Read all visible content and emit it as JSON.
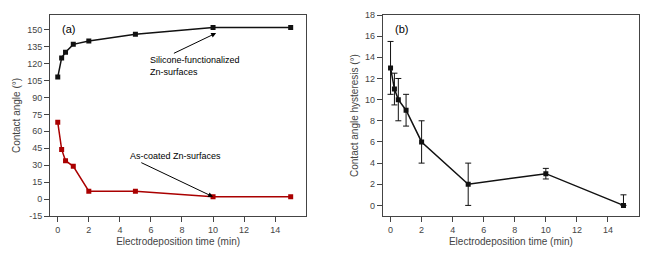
{
  "chart_data": [
    {
      "type": "line",
      "xlabel": "Electrodeposition time (min)",
      "ylabel": "Contact angle (°)",
      "x": [
        0,
        0.25,
        0.5,
        1,
        2,
        5,
        10,
        15
      ],
      "series": [
        {
          "name": "Silicone-functionalized Zn-surfaces",
          "color": "#111111",
          "marker": "square",
          "line_style": "solid",
          "values": [
            108,
            125,
            130,
            137,
            140,
            146,
            152,
            152
          ]
        },
        {
          "name": "As-coated Zn-surfaces",
          "color": "#aa0000",
          "marker": "square",
          "line_style": "solid",
          "values": [
            68,
            44,
            34,
            29,
            7,
            7,
            2,
            2
          ]
        }
      ],
      "xlim": [
        -0.5,
        16
      ],
      "ylim": [
        -15,
        163
      ],
      "xticks": [
        0,
        2,
        4,
        6,
        8,
        10,
        12,
        14
      ],
      "yticks": [
        -15,
        0,
        15,
        30,
        45,
        60,
        75,
        90,
        105,
        120,
        135,
        150
      ],
      "grid": false,
      "legend": false,
      "annotations": [
        {
          "text": "Silicone-functionalized\nZn-surfaces",
          "x": 10.2,
          "y": 147,
          "text_x": 5.8,
          "text_y": 118
        },
        {
          "text": "As-coated Zn-surfaces",
          "x": 10,
          "y": 2,
          "text_x": 4.5,
          "text_y": 38
        },
        {
          "text": "(a)"
        }
      ]
    },
    {
      "type": "line",
      "xlabel": "Electrodeposition time (min)",
      "ylabel": "Contact angle hysteresis (°)",
      "x": [
        0,
        0.25,
        0.5,
        1,
        2,
        5,
        10,
        15
      ],
      "series": [
        {
          "name": "Contact angle hysteresis",
          "color": "#111111",
          "marker": "square",
          "line_style": "solid",
          "values": [
            13,
            11,
            10,
            9,
            6,
            2,
            3,
            0
          ],
          "error_minus": [
            2.5,
            1.5,
            2.0,
            1.5,
            2.0,
            2.0,
            0.5,
            0.0
          ],
          "error_plus": [
            2.5,
            1.5,
            2.0,
            1.5,
            2.0,
            2.0,
            0.5,
            1.0
          ]
        }
      ],
      "xlim": [
        -0.5,
        16
      ],
      "ylim": [
        -1,
        18
      ],
      "xticks": [
        0,
        2,
        4,
        6,
        8,
        10,
        12,
        14
      ],
      "yticks": [
        0,
        2,
        4,
        6,
        8,
        10,
        12,
        14,
        16,
        18
      ],
      "grid": false,
      "legend": false,
      "annotations": [
        {
          "text": "(b)"
        }
      ]
    }
  ]
}
